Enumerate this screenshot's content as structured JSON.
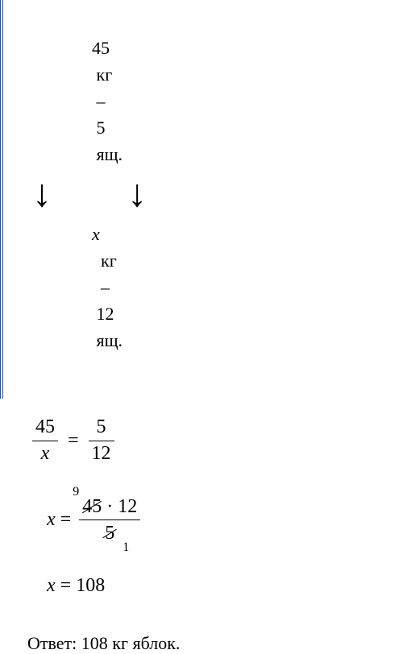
{
  "setup": {
    "line1_val": "45",
    "line1_unit": "кг",
    "line1_dash": "–",
    "line1_qty": "5",
    "line1_obj": "ящ.",
    "line2_var": "x",
    "line2_unit": "кг",
    "line2_dash": "–",
    "line2_qty": "12",
    "line2_obj": "ящ."
  },
  "proportion": {
    "left_num": "45",
    "left_den": "x",
    "right_num": "5",
    "right_den": "12",
    "eq": "="
  },
  "calc": {
    "lhs": "x",
    "eq": "=",
    "reduce_top": "9",
    "num_a": "45",
    "dot": "·",
    "num_b": "12",
    "den": "5",
    "reduce_bot": "1"
  },
  "result": {
    "lhs": "x",
    "eq": "=",
    "val": "108"
  },
  "answer": {
    "label": "Ответ:",
    "text": "108 кг яблок."
  },
  "style": {
    "text_color": "#000000",
    "border_color": "#2a4b8d",
    "font_family": "Times New Roman",
    "base_fontsize_pt": 18
  }
}
